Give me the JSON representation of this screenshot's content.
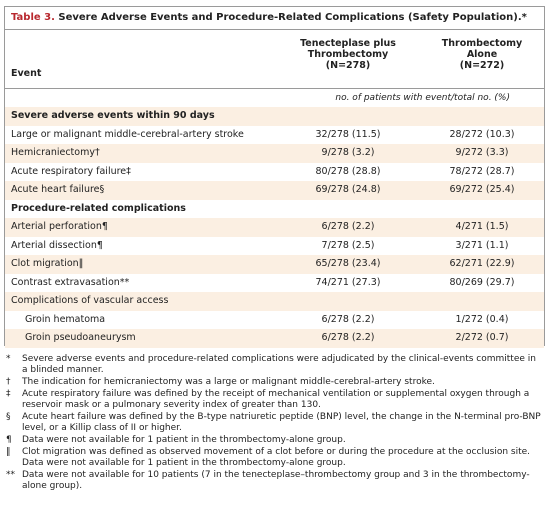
{
  "header": {
    "table_label": "Table 3.",
    "title": "Severe Adverse Events and Procedure-Related Complications (Safety Population).*"
  },
  "table": {
    "columns": [
      [
        "Event"
      ],
      [
        "Tenecteplase plus",
        "Thrombectomy",
        "(N=278)"
      ],
      [
        "Thrombectomy",
        "Alone",
        "(N=272)"
      ]
    ],
    "units_note": "no. of patients with event/total no. (%)",
    "sections": [
      {
        "title": "Severe adverse events within 90 days",
        "rows": [
          {
            "label": "Large or malignant middle-cerebral-artery stroke",
            "values": [
              "32/278 (11.5)",
              "28/272 (10.3)"
            ]
          },
          {
            "label": "Hemicraniectomy†",
            "values": [
              "9/278 (3.2)",
              "9/272 (3.3)"
            ]
          },
          {
            "label": "Acute respiratory failure‡",
            "values": [
              "80/278 (28.8)",
              "78/272 (28.7)"
            ]
          },
          {
            "label": "Acute heart failure§",
            "values": [
              "69/278 (24.8)",
              "69/272 (25.4)"
            ]
          }
        ]
      },
      {
        "title": "Procedure-related complications",
        "rows": [
          {
            "label": "Arterial perforation¶",
            "values": [
              "6/278 (2.2)",
              "4/271 (1.5)"
            ]
          },
          {
            "label": "Arterial dissection¶",
            "values": [
              "7/278 (2.5)",
              "3/271 (1.1)"
            ]
          },
          {
            "label": "Clot migration‖",
            "values": [
              "65/278 (23.4)",
              "62/271 (22.9)"
            ]
          },
          {
            "label": "Contrast extravasation**",
            "values": [
              "74/271 (27.3)",
              "80/269 (29.7)"
            ]
          },
          {
            "label": "Complications of vascular access",
            "rows": [
              {
                "label": "Groin hematoma",
                "values": [
                  "6/278 (2.2)",
                  "1/272 (0.4)"
                ]
              },
              {
                "label": "Groin pseudoaneurysm",
                "values": [
                  "6/278 (2.2)",
                  "2/272 (0.7)"
                ]
              }
            ]
          }
        ]
      }
    ]
  },
  "footnotes": [
    {
      "symbol": "*",
      "text": "Severe adverse events and procedure-related complications were adjudicated by the clinical-events committee in a blinded manner."
    },
    {
      "symbol": "†",
      "text": "The indication for hemicraniectomy was a large or malignant middle-cerebral-artery stroke."
    },
    {
      "symbol": "‡",
      "text": "Acute respiratory failure was defined by the receipt of mechanical ventilation or supplemental oxygen through a reservoir mask or a pulmonary severity index of greater than 130."
    },
    {
      "symbol": "§",
      "text": "Acute heart failure was defined by the B-type natriuretic peptide (BNP) level, the change in the N-terminal pro-BNP level, or a Killip class of II or higher."
    },
    {
      "symbol": "¶",
      "text": "Data were not available for 1 patient in the thrombectomy-alone group."
    },
    {
      "symbol": "‖",
      "text": "Clot migration was defined as observed movement of a clot before or during the procedure at the occlusion site. Data were not available for 1 patient in the thrombectomy-alone group."
    },
    {
      "symbol": "**",
      "text": "Data were not available for 10 patients (7 in the tenecteplase–thrombectomy group and 3 in the thrombectomy-alone group)."
    }
  ]
}
